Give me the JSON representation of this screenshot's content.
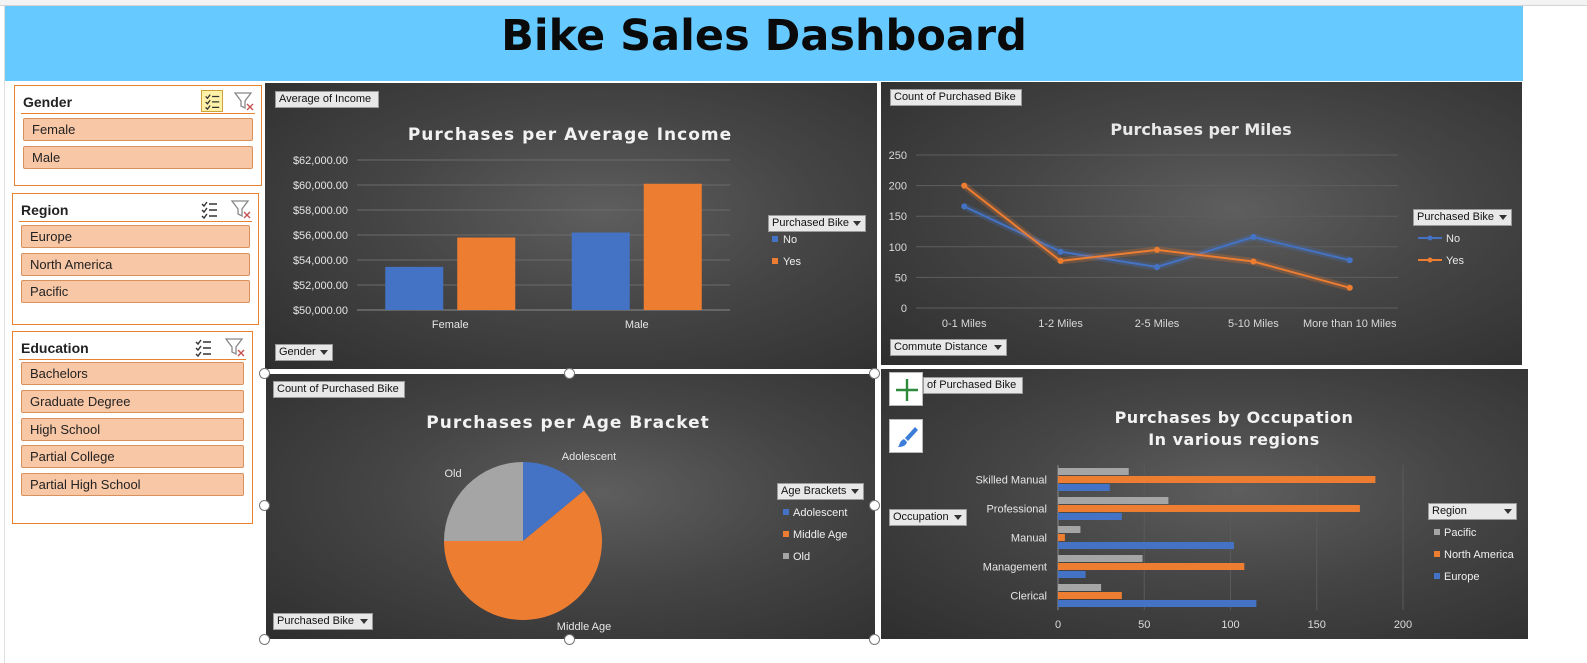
{
  "dashboard": {
    "title": "Bike Sales Dashboard"
  },
  "slicers": {
    "gender": {
      "title": "Gender",
      "items": [
        "Female",
        "Male"
      ]
    },
    "region": {
      "title": "Region",
      "items": [
        "Europe",
        "North America",
        "Pacific"
      ]
    },
    "education": {
      "title": "Education",
      "items": [
        "Bachelors",
        "Graduate Degree",
        "High School",
        "Partial College",
        "Partial High School"
      ]
    }
  },
  "icons": {
    "multi_select": "multi-select-icon",
    "clear_filter": "clear-filter-icon",
    "add": "plus-icon",
    "style": "brush-icon"
  },
  "colors": {
    "blue": "#4472c4",
    "orange": "#ed7d31",
    "gray": "#a5a5a5",
    "banner": "#66c9ff",
    "slicer_item": "#f8c7a6"
  },
  "panels": {
    "income": {
      "value_button": "Average of Income",
      "axis_button": "Gender",
      "legend_button": "Purchased Bike"
    },
    "miles": {
      "value_button": "Count of Purchased Bike",
      "axis_button": "Commute Distance",
      "legend_button": "Purchased Bike"
    },
    "age": {
      "value_button": "Count of Purchased Bike",
      "filter_button": "Purchased Bike",
      "legend_button": "Age Brackets"
    },
    "occupation": {
      "value_button": "of Purchased Bike",
      "axis_button": "Occupation",
      "legend_button": "Region"
    }
  },
  "chart_data": [
    {
      "id": "income",
      "type": "bar",
      "title": "Purchases per Average Income",
      "categories": [
        "Female",
        "Male"
      ],
      "series": [
        {
          "name": "No",
          "values": [
            53450,
            56200
          ],
          "color": "#4472c4"
        },
        {
          "name": "Yes",
          "values": [
            55800,
            60100
          ],
          "color": "#ed7d31"
        }
      ],
      "ylim": [
        50000,
        62000
      ],
      "yticks": [
        50000,
        52000,
        54000,
        56000,
        58000,
        60000,
        62000
      ],
      "ytick_labels": [
        "$50,000.00",
        "$52,000.00",
        "$54,000.00",
        "$56,000.00",
        "$58,000.00",
        "$60,000.00",
        "$62,000.00"
      ],
      "grid": true,
      "legend_position": "right"
    },
    {
      "id": "miles",
      "type": "line",
      "title": "Purchases per Miles",
      "categories": [
        "0-1 Miles",
        "1-2 Miles",
        "2-5 Miles",
        "5-10 Miles",
        "More than 10 Miles"
      ],
      "series": [
        {
          "name": "No",
          "values": [
            166,
            92,
            67,
            116,
            78
          ],
          "color": "#4472c4"
        },
        {
          "name": "Yes",
          "values": [
            200,
            77,
            95,
            76,
            33
          ],
          "color": "#ed7d31"
        }
      ],
      "ylim": [
        0,
        250
      ],
      "yticks": [
        0,
        50,
        100,
        150,
        200,
        250
      ],
      "grid": true,
      "legend_position": "right"
    },
    {
      "id": "age",
      "type": "pie",
      "title": "Purchases per Age Bracket",
      "categories": [
        "Adolescent",
        "Middle Age",
        "Old"
      ],
      "values": [
        14,
        61,
        25
      ],
      "colors": [
        "#4472c4",
        "#ed7d31",
        "#a5a5a5"
      ],
      "legend_position": "right"
    },
    {
      "id": "occupation",
      "type": "bar",
      "orientation": "horizontal",
      "title": "Purchases by Occupation\nIn various regions",
      "title_lines": [
        "Purchases by Occupation",
        "In various regions"
      ],
      "categories": [
        "Clerical",
        "Management",
        "Manual",
        "Professional",
        "Skilled Manual"
      ],
      "series": [
        {
          "name": "Europe",
          "values": [
            115,
            16,
            102,
            37,
            30
          ],
          "color": "#4472c4"
        },
        {
          "name": "North America",
          "values": [
            37,
            108,
            4,
            175,
            184
          ],
          "color": "#ed7d31"
        },
        {
          "name": "Pacific",
          "values": [
            25,
            49,
            13,
            64,
            41
          ],
          "color": "#a5a5a5"
        }
      ],
      "legend_order": [
        "Pacific",
        "North America",
        "Europe"
      ],
      "xlim": [
        0,
        200
      ],
      "xticks": [
        0,
        50,
        100,
        150,
        200
      ],
      "grid": true,
      "legend_position": "right"
    }
  ]
}
